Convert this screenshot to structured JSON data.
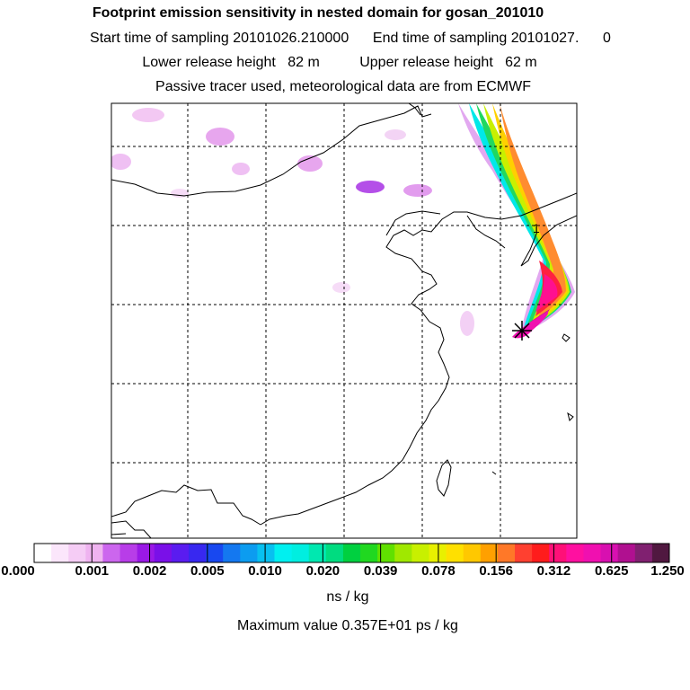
{
  "header": {
    "title": "Footprint emission sensitivity in nested domain for gosan_201010",
    "sampling": "Start time of sampling 20101026.210000      End time of sampling 20101027.      0",
    "release": "Lower release height   82 m          Upper release height   62 m",
    "tracer": "Passive tracer used, meteorological data are from ECMWF"
  },
  "map": {
    "receptor_marker": "star-marker",
    "contour_label": "1"
  },
  "colorbar": {
    "colors": [
      "#ffffff",
      "#fbe6fb",
      "#f5ccf5",
      "#efb3f0",
      "#cc66ee",
      "#b83de8",
      "#9a19e6",
      "#7a10e8",
      "#5a1cf0",
      "#3828f0",
      "#1848f0",
      "#1478f0",
      "#0c9cf0",
      "#08c0f0",
      "#00f0f0",
      "#00eee0",
      "#00e8b0",
      "#00dc80",
      "#00d040",
      "#20d820",
      "#60e000",
      "#a0e800",
      "#c8f000",
      "#e8f000",
      "#ffe000",
      "#ffc800",
      "#ffa000",
      "#ff7828",
      "#ff4030",
      "#ff1c1c",
      "#ff1078",
      "#ff10a0",
      "#f010b0",
      "#d810b0",
      "#b01090",
      "#802070",
      "#501840"
    ],
    "tick_labels": [
      "0.000",
      "0.001",
      "0.002",
      "0.005",
      "0.010",
      "0.020",
      "0.039",
      "0.078",
      "0.156",
      "0.312",
      "0.625",
      "1.250"
    ],
    "unit": "ns / kg"
  },
  "footer": {
    "max_value": "Maximum value  0.357E+01 ps / kg"
  }
}
